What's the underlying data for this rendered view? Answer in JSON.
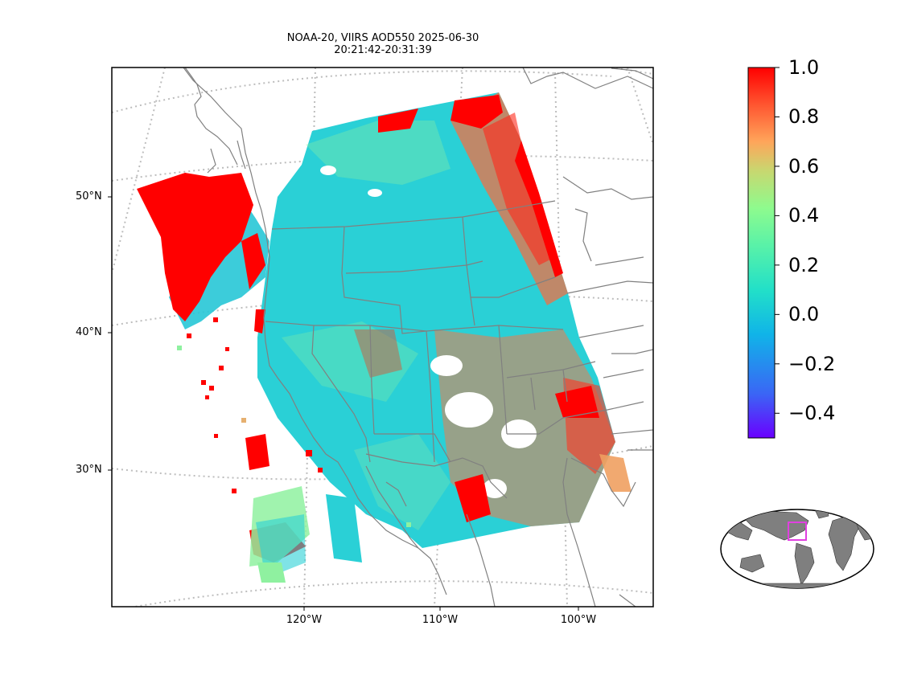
{
  "title": {
    "line1": "NOAA-20, VIIRS AOD550 2025-06-30",
    "line2": "20:21:42-20:31:39"
  },
  "map": {
    "projection": "lambert-conformal",
    "graticule_style": "dotted-gray",
    "lat_labels": [
      "50°N",
      "40°N",
      "30°N"
    ],
    "lon_labels": [
      "120°W",
      "110°W",
      "100°W"
    ],
    "outline_color": "#808080",
    "no_data_color": "#ffffff"
  },
  "colorbar": {
    "colormap": "rainbow",
    "range": [
      -0.5,
      1.0
    ],
    "ticks": [
      {
        "label": "1.0",
        "value": 1.0
      },
      {
        "label": "0.8",
        "value": 0.8
      },
      {
        "label": "0.6",
        "value": 0.6
      },
      {
        "label": "0.4",
        "value": 0.4
      },
      {
        "label": "0.2",
        "value": 0.2
      },
      {
        "label": "0.0",
        "value": 0.0
      },
      {
        "label": "−0.2",
        "value": -0.2
      },
      {
        "label": "−0.4",
        "value": -0.4
      }
    ],
    "colors": [
      "#6a00ff",
      "#3a66f5",
      "#10b4e8",
      "#22e0c8",
      "#8efb8e",
      "#c7d870",
      "#ffa55a",
      "#ff5530",
      "#ff0000"
    ]
  },
  "inset": {
    "type": "world-locator",
    "land_color": "#808080",
    "highlight_color": "#e040e0"
  }
}
